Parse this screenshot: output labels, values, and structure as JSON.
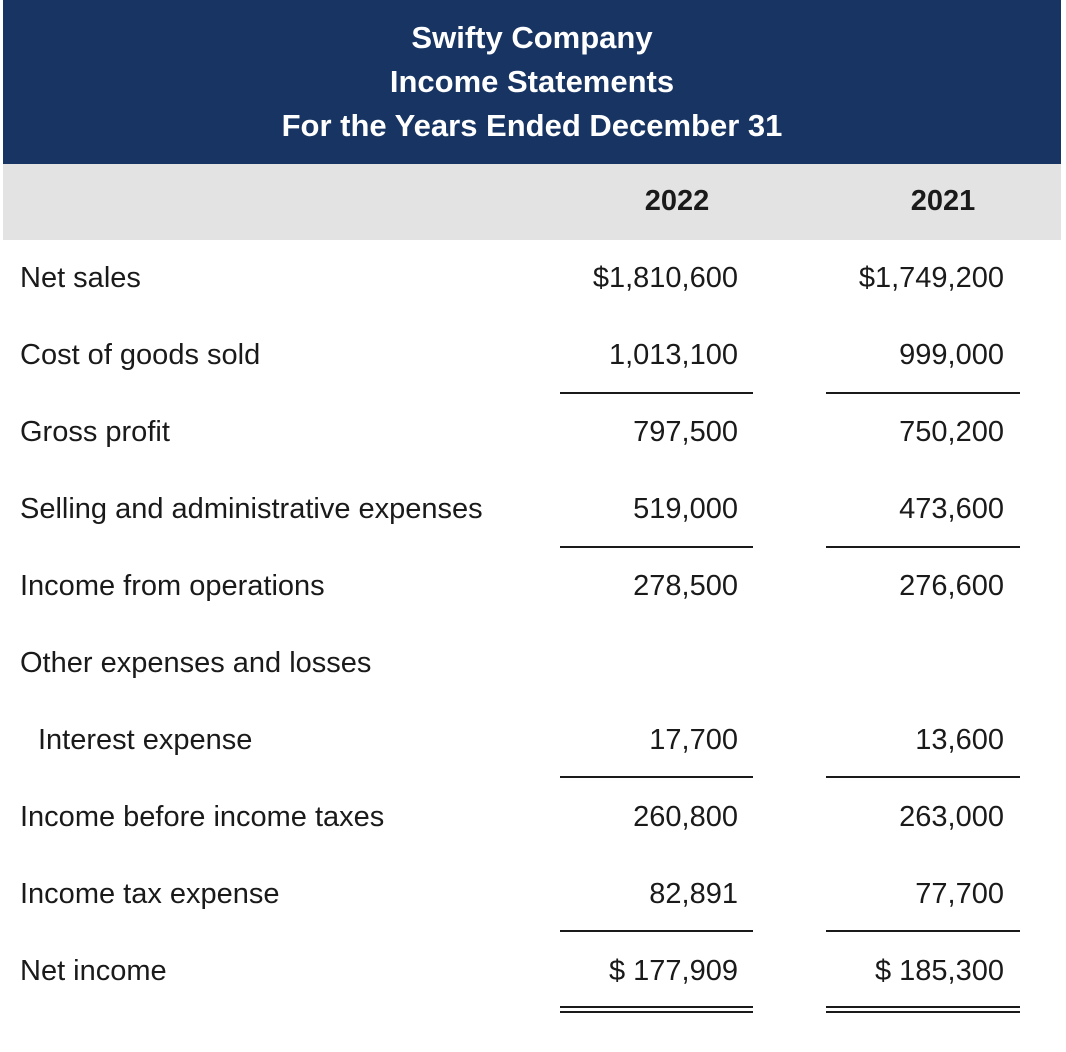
{
  "header": {
    "company": "Swifty Company",
    "statement": "Income Statements",
    "period": "For the Years Ended December 31"
  },
  "columns": [
    "2022",
    "2021"
  ],
  "rows": [
    {
      "label": "Net sales",
      "y2022": "$1,810,600",
      "y2021": "$1,749,200"
    },
    {
      "label": "Cost of goods sold",
      "y2022": "1,013,100",
      "y2021": "999,000"
    },
    {
      "label": "Gross profit",
      "y2022": "797,500",
      "y2021": "750,200"
    },
    {
      "label": "Selling and administrative expenses",
      "y2022": "519,000",
      "y2021": "473,600"
    },
    {
      "label": "Income from operations",
      "y2022": "278,500",
      "y2021": "276,600"
    },
    {
      "label": "Other expenses and losses",
      "y2022": "",
      "y2021": ""
    },
    {
      "label": "Interest expense",
      "y2022": "17,700",
      "y2021": "13,600"
    },
    {
      "label": "Income before income taxes",
      "y2022": "260,800",
      "y2021": "263,000"
    },
    {
      "label": "Income tax expense",
      "y2022": "82,891",
      "y2021": "77,700"
    },
    {
      "label": "Net income",
      "y2022": "$ 177,909",
      "y2021": "$ 185,300"
    }
  ],
  "colors": {
    "header_bg": "#173463",
    "column_bar_bg": "#e3e3e3"
  }
}
